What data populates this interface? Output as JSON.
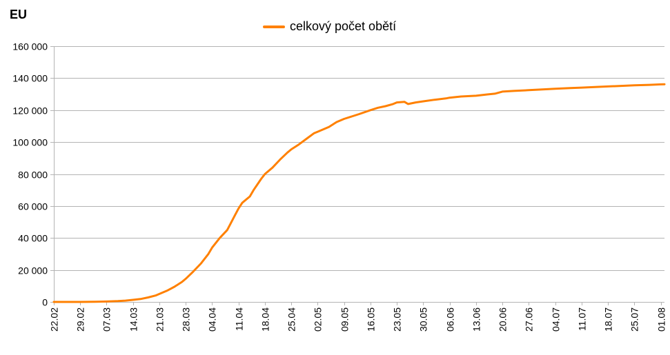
{
  "chart_data": {
    "type": "line",
    "title": "EU",
    "xlabel": "",
    "ylabel": "",
    "ylim": [
      0,
      160000
    ],
    "yticks": [
      0,
      20000,
      40000,
      60000,
      80000,
      100000,
      120000,
      140000,
      160000
    ],
    "ytick_labels": [
      "0",
      "20 000",
      "40 000",
      "60 000",
      "80 000",
      "100 000",
      "120 000",
      "140 000",
      "160 000"
    ],
    "x_start": "2020-02-22",
    "x_end": "2020-08-02",
    "xtick_dates": [
      "2020-02-22",
      "2020-02-29",
      "2020-03-07",
      "2020-03-14",
      "2020-03-21",
      "2020-03-28",
      "2020-04-04",
      "2020-04-11",
      "2020-04-18",
      "2020-04-25",
      "2020-05-02",
      "2020-05-09",
      "2020-05-16",
      "2020-05-23",
      "2020-05-30",
      "2020-06-06",
      "2020-06-13",
      "2020-06-20",
      "2020-06-27",
      "2020-07-04",
      "2020-07-11",
      "2020-07-18",
      "2020-07-25",
      "2020-08-01"
    ],
    "xtick_labels": [
      "22.02",
      "29.02",
      "07.03",
      "14.03",
      "21.03",
      "28.03",
      "04.04",
      "11.04",
      "18.04",
      "25.04",
      "02.05",
      "09.05",
      "16.05",
      "23.05",
      "30.05",
      "06.06",
      "13.06",
      "20.06",
      "27.06",
      "04.07",
      "11.07",
      "18.07",
      "25.07",
      "01.08"
    ],
    "grid": true,
    "legend_position": "top-center",
    "series": [
      {
        "name": "celkový počet obětí",
        "color": "#ff8000",
        "points": [
          [
            "2020-02-22",
            0
          ],
          [
            "2020-02-29",
            20
          ],
          [
            "2020-03-04",
            100
          ],
          [
            "2020-03-07",
            250
          ],
          [
            "2020-03-10",
            500
          ],
          [
            "2020-03-12",
            800
          ],
          [
            "2020-03-14",
            1300
          ],
          [
            "2020-03-16",
            1800
          ],
          [
            "2020-03-18",
            2800
          ],
          [
            "2020-03-20",
            4000
          ],
          [
            "2020-03-21",
            5000
          ],
          [
            "2020-03-23",
            7000
          ],
          [
            "2020-03-25",
            9500
          ],
          [
            "2020-03-27",
            12500
          ],
          [
            "2020-03-28",
            14500
          ],
          [
            "2020-03-30",
            19000
          ],
          [
            "2020-04-01",
            24000
          ],
          [
            "2020-04-03",
            30000
          ],
          [
            "2020-04-04",
            34000
          ],
          [
            "2020-04-06",
            40000
          ],
          [
            "2020-04-08",
            45000
          ],
          [
            "2020-04-09",
            49500
          ],
          [
            "2020-04-10",
            54000
          ],
          [
            "2020-04-11",
            58500
          ],
          [
            "2020-04-12",
            62000
          ],
          [
            "2020-04-14",
            66000
          ],
          [
            "2020-04-15",
            70000
          ],
          [
            "2020-04-16",
            73500
          ],
          [
            "2020-04-17",
            77000
          ],
          [
            "2020-04-18",
            80000
          ],
          [
            "2020-04-20",
            84000
          ],
          [
            "2020-04-22",
            89000
          ],
          [
            "2020-04-24",
            93500
          ],
          [
            "2020-04-25",
            95500
          ],
          [
            "2020-04-27",
            98500
          ],
          [
            "2020-04-29",
            102000
          ],
          [
            "2020-05-01",
            105500
          ],
          [
            "2020-05-02",
            106500
          ],
          [
            "2020-05-05",
            109500
          ],
          [
            "2020-05-07",
            112500
          ],
          [
            "2020-05-09",
            114500
          ],
          [
            "2020-05-11",
            116000
          ],
          [
            "2020-05-13",
            117500
          ],
          [
            "2020-05-16",
            120000
          ],
          [
            "2020-05-18",
            121500
          ],
          [
            "2020-05-20",
            122500
          ],
          [
            "2020-05-22",
            123800
          ],
          [
            "2020-05-23",
            124800
          ],
          [
            "2020-05-25",
            125200
          ],
          [
            "2020-05-26",
            123800
          ],
          [
            "2020-05-28",
            124800
          ],
          [
            "2020-05-30",
            125500
          ],
          [
            "2020-06-02",
            126500
          ],
          [
            "2020-06-05",
            127300
          ],
          [
            "2020-06-06",
            127800
          ],
          [
            "2020-06-09",
            128500
          ],
          [
            "2020-06-13",
            129000
          ],
          [
            "2020-06-16",
            129800
          ],
          [
            "2020-06-18",
            130300
          ],
          [
            "2020-06-20",
            131600
          ],
          [
            "2020-06-23",
            132000
          ],
          [
            "2020-06-27",
            132500
          ],
          [
            "2020-07-01",
            133000
          ],
          [
            "2020-07-04",
            133400
          ],
          [
            "2020-07-08",
            133800
          ],
          [
            "2020-07-11",
            134100
          ],
          [
            "2020-07-15",
            134500
          ],
          [
            "2020-07-18",
            134800
          ],
          [
            "2020-07-22",
            135200
          ],
          [
            "2020-07-25",
            135500
          ],
          [
            "2020-07-29",
            135800
          ],
          [
            "2020-08-01",
            136100
          ],
          [
            "2020-08-02",
            136200
          ]
        ]
      }
    ]
  }
}
